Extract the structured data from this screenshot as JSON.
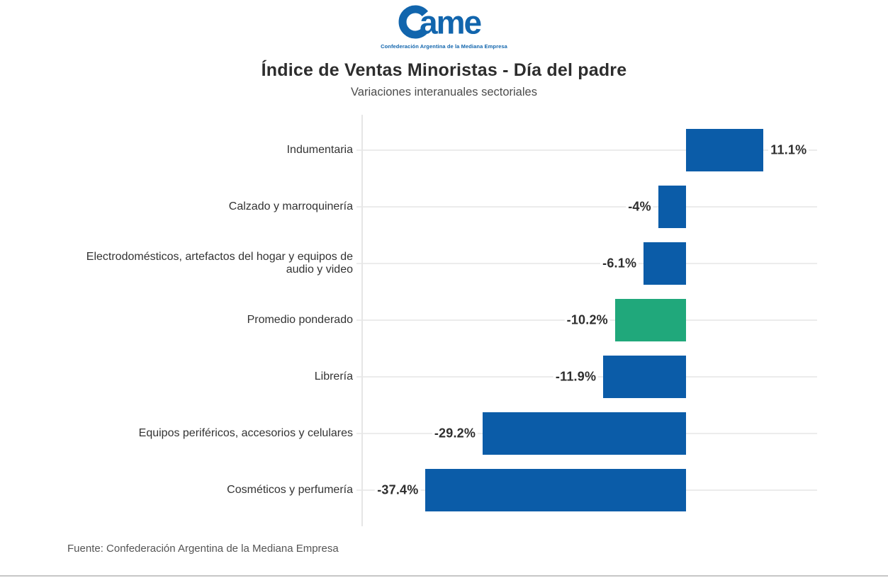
{
  "logo": {
    "wordmark_suffix": "ame",
    "subtext": "Confederación Argentina de la Mediana Empresa"
  },
  "header": {
    "title": "Índice de Ventas Minoristas - Día del padre",
    "subtitle": "Variaciones interanuales sectoriales"
  },
  "footer": {
    "source": "Fuente: Confederación Argentina de la Mediana Empresa"
  },
  "colors": {
    "bar_default": "#0b5ca8",
    "bar_highlight": "#20a87b",
    "logo_blue": "#1165ad",
    "gridline": "#ececec",
    "axis": "#e6e6e6",
    "label_dark": "#333333"
  },
  "chart_data": {
    "type": "bar",
    "orientation": "horizontal",
    "title": "Índice de Ventas Minoristas - Día del padre",
    "subtitle": "Variaciones interanuales sectoriales",
    "source": "Fuente: Confederación Argentina de la Mediana Empresa",
    "categories": [
      "Indumentaria",
      "Calzado y marroquinería",
      "Electrodomésticos, artefactos del hogar y equipos de audio y video",
      "Promedio ponderado",
      "Librería",
      "Equipos periféricos, accesorios y celulares",
      "Cosméticos y perfumería"
    ],
    "values": [
      11.1,
      -4,
      -6.1,
      -10.2,
      -11.9,
      -29.2,
      -37.4
    ],
    "value_labels": [
      "11.1%",
      "-4%",
      "-6.1%",
      "-10.2%",
      "-11.9%",
      "-29.2%",
      "-37.4%"
    ],
    "highlight_category": "Promedio ponderado",
    "xlabel": "",
    "ylabel": "",
    "xlim": [
      -46.5,
      18.8
    ],
    "grid": true,
    "legend": "none",
    "value_label_position": "outside-end"
  }
}
